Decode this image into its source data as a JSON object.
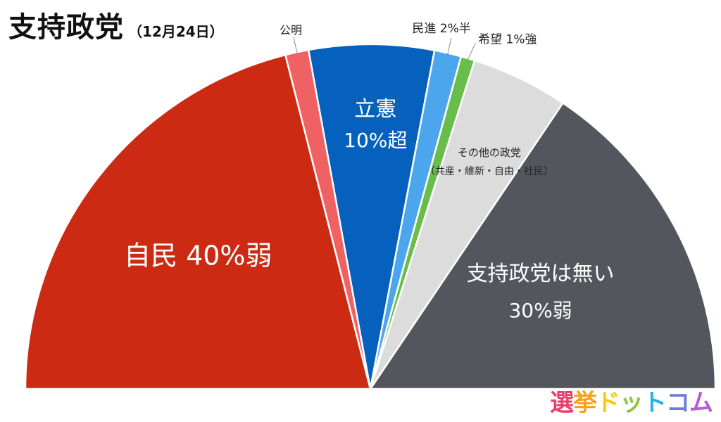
{
  "header": {
    "title": "支持政党",
    "subtitle": "（12月24日）"
  },
  "colors": {
    "jimin": "#cc2a13",
    "komei": "#ef6162",
    "rikken": "#0561bd",
    "minshin": "#4ca6ed",
    "kibo": "#68bd4b",
    "other": "#dcdcdc",
    "none": "#53575d",
    "separator": "#ffffff"
  },
  "chart_data": {
    "type": "pie",
    "title": "支持政党",
    "subtitle": "（12月24日）",
    "layout": "semicircle",
    "slices": [
      {
        "name": "自民",
        "display": "40%弱",
        "value": 38.5,
        "color": "#cc2a13"
      },
      {
        "name": "公明",
        "display": "",
        "value": 2.0,
        "color": "#ef6162"
      },
      {
        "name": "立憲",
        "display": "10%超",
        "value": 10.7,
        "color": "#0561bd"
      },
      {
        "name": "民進",
        "display": "2%半",
        "value": 2.3,
        "color": "#4ca6ed"
      },
      {
        "name": "希望",
        "display": "1%強",
        "value": 1.2,
        "color": "#68bd4b"
      },
      {
        "name": "その他の政党",
        "display": "（共産・維新・自由・社民）",
        "value": 8.3,
        "color": "#dcdcdc"
      },
      {
        "name": "支持政党は無い",
        "display": "30%弱",
        "value": 28.5,
        "color": "#53575d"
      }
    ]
  },
  "watermark": {
    "parts": [
      {
        "text": "選",
        "color": "#e83e6c"
      },
      {
        "text": "挙",
        "color": "#f7a21b"
      },
      {
        "text": "ド",
        "color": "#f6cd0a"
      },
      {
        "text": "ッ",
        "color": "#8cc63f"
      },
      {
        "text": "ト",
        "color": "#25b0e6"
      },
      {
        "text": "コ",
        "color": "#6e7dd4"
      },
      {
        "text": "ム",
        "color": "#b45bd0"
      }
    ]
  }
}
